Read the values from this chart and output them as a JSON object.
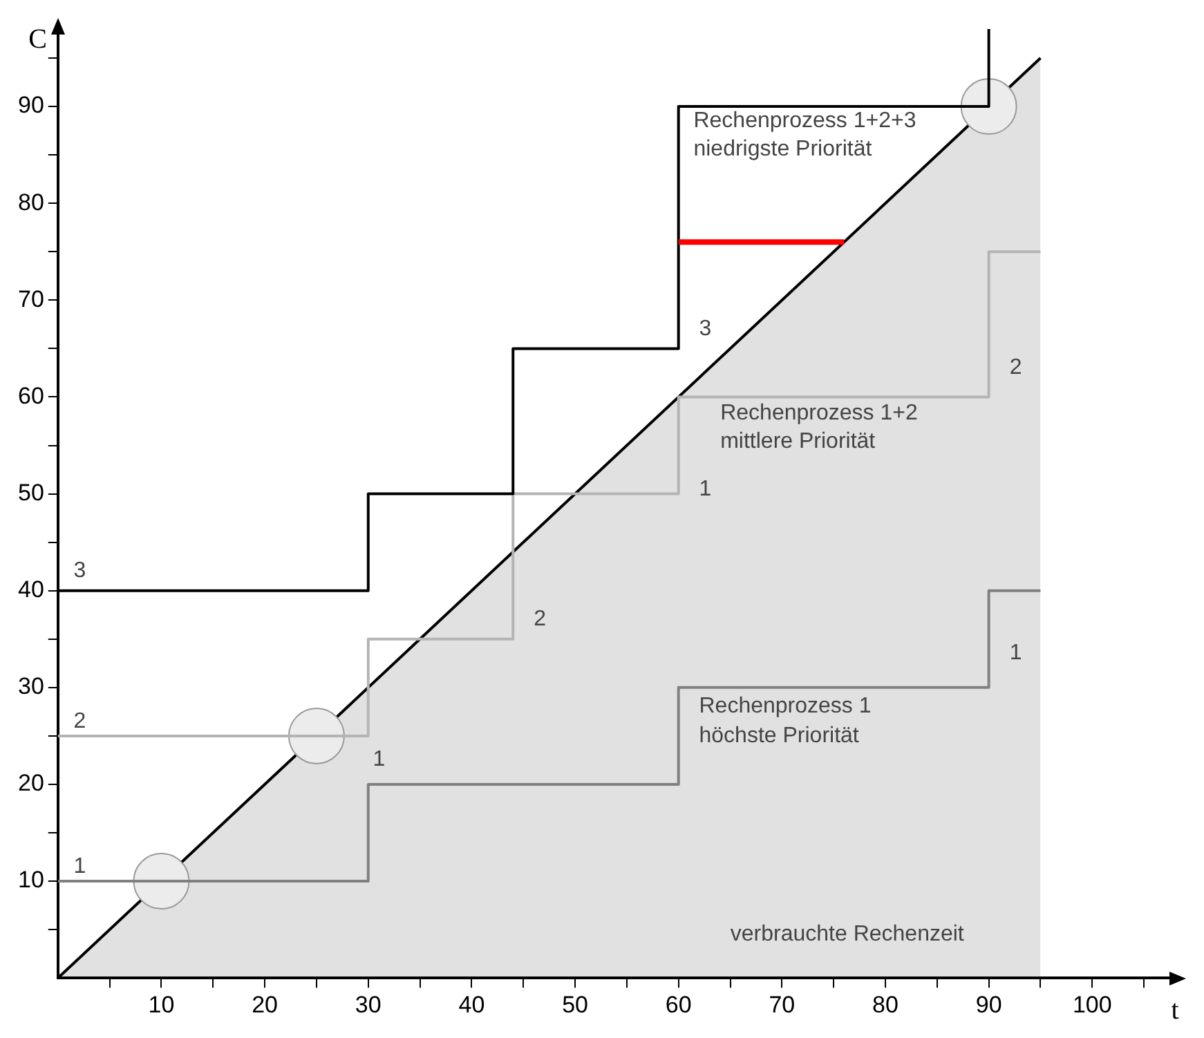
{
  "chart_data": {
    "type": "step",
    "xlabel": "t",
    "ylabel": "C",
    "xlim": [
      0,
      108
    ],
    "ylim": [
      0,
      98
    ],
    "xticks": [
      {
        "value": 5,
        "label": null
      },
      10,
      {
        "value": 15,
        "label": null
      },
      20,
      {
        "value": 25,
        "label": null
      },
      30,
      {
        "value": 35,
        "label": null
      },
      40,
      {
        "value": 45,
        "label": null
      },
      50,
      {
        "value": 55,
        "label": null
      },
      60,
      {
        "value": 65,
        "label": null
      },
      70,
      {
        "value": 75,
        "label": null
      },
      80,
      {
        "value": 85,
        "label": null
      },
      90,
      {
        "value": 95,
        "label": null
      },
      100,
      {
        "value": 105,
        "label": null
      }
    ],
    "yticks": [
      {
        "value": 5,
        "label": null
      },
      10,
      {
        "value": 15,
        "label": null
      },
      20,
      {
        "value": 25,
        "label": null
      },
      30,
      {
        "value": 35,
        "label": null
      },
      40,
      {
        "value": 45,
        "label": null
      },
      50,
      {
        "value": 55,
        "label": null
      },
      60,
      {
        "value": 65,
        "label": null
      },
      70,
      {
        "value": 75,
        "label": null
      },
      80,
      {
        "value": 85,
        "label": null
      },
      90,
      {
        "value": 95,
        "label": null
      }
    ],
    "grid": false,
    "legend": false,
    "series": [
      {
        "type": "area",
        "color": "#000000",
        "x": [
          0,
          95
        ],
        "values": [
          0,
          95
        ]
      },
      {
        "type": "scatter",
        "color": "#ececec",
        "marker": "circle",
        "x": [
          10,
          25,
          90
        ],
        "values": [
          10,
          25,
          90
        ]
      },
      {
        "color": "#808080",
        "x": [
          0,
          30,
          60,
          90,
          95
        ],
        "values": [
          10,
          20,
          30,
          40,
          40
        ]
      },
      {
        "color": "#b4b4b4",
        "x": [
          0,
          30,
          44,
          60,
          90,
          95
        ],
        "values": [
          25,
          35,
          50,
          60,
          75,
          75
        ]
      },
      {
        "color": "#000000",
        "x": [
          0,
          30,
          44,
          60,
          90
        ],
        "values": [
          40,
          50,
          65,
          90,
          98
        ]
      },
      {
        "type": "line",
        "color": "#ff0000",
        "x": [
          60,
          76
        ],
        "values": [
          76,
          76
        ]
      }
    ],
    "annotations": [
      "1",
      "2",
      "3",
      "1",
      "2",
      "1",
      "3",
      "2",
      "1",
      "Rechenprozess 1",
      "höchste Priorität",
      "Rechenprozess 1+2",
      "mittlere Priorität",
      "Rechenprozess 1+2+3",
      "niedrigste Priorität",
      "verbrauchte Rechenzeit"
    ]
  }
}
